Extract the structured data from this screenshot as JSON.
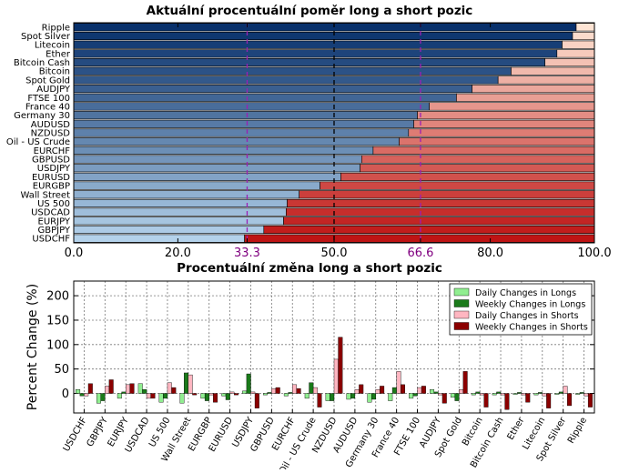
{
  "chart_data": [
    {
      "type": "bar",
      "orientation": "horizontal",
      "stacked": true,
      "title": "Aktuální procentuální poměr long a short pozic",
      "xlim": [
        0,
        100
      ],
      "xticks": [
        "0.0",
        "20.0",
        "33.3",
        "50.0",
        "66.6",
        "80.0",
        "100.0"
      ],
      "reference_lines": [
        {
          "value": 33.3,
          "style": "dashed",
          "color": "#9b1fb4"
        },
        {
          "value": 50.0,
          "style": "dashed",
          "color": "#000000"
        },
        {
          "value": 66.6,
          "style": "dashed",
          "color": "#9b1fb4"
        }
      ],
      "categories": [
        "Ripple",
        "Spot Silver",
        "Litecoin",
        "Ether",
        "Bitcoin Cash",
        "Bitcoin",
        "Spot Gold",
        "AUDJPY",
        "FTSE 100",
        "France 40",
        "Germany 30",
        "AUDUSD",
        "NZDUSD",
        "Oil - US Crude",
        "EURCHF",
        "GBPUSD",
        "USDJPY",
        "EURUSD",
        "EURGBP",
        "Wall Street",
        "US 500",
        "USDCAD",
        "EURJPY",
        "GBPJPY",
        "USDCHF"
      ],
      "long_percent": [
        96.5,
        95.8,
        93.8,
        92.8,
        90.5,
        84.0,
        81.5,
        76.5,
        73.5,
        68.3,
        66.0,
        65.3,
        64.3,
        62.5,
        57.5,
        55.3,
        55.0,
        51.3,
        47.3,
        43.3,
        41.0,
        40.8,
        40.3,
        36.5,
        32.8
      ],
      "short_percent": [
        3.5,
        4.2,
        6.2,
        7.2,
        9.5,
        16.0,
        18.5,
        23.5,
        26.5,
        31.7,
        34.0,
        34.7,
        35.7,
        37.5,
        42.5,
        44.7,
        45.0,
        48.7,
        52.7,
        56.7,
        59.0,
        59.2,
        59.7,
        63.5,
        67.2
      ],
      "grid": false
    },
    {
      "type": "bar",
      "title": "Procentuální změna long a short pozic",
      "ylabel": "Percent Change (%)",
      "ylim": [
        -40,
        230
      ],
      "yticks": [
        0,
        50,
        100,
        150,
        200
      ],
      "ytick_labels": [
        "0",
        "50",
        "100",
        "150",
        "200"
      ],
      "grid": true,
      "legend_placement": "top-right",
      "categories": [
        "USDCHF",
        "GBPJPY",
        "EURJPY",
        "USDCAD",
        "US 500",
        "Wall Street",
        "EURGBP",
        "EURUSD",
        "USDJPY",
        "GBPUSD",
        "EURCHF",
        "Oil - US Crude",
        "NZDUSD",
        "AUDUSD",
        "Germany 30",
        "France 40",
        "FTSE 100",
        "AUDJPY",
        "Spot Gold",
        "Bitcoin",
        "Bitcoin Cash",
        "Ether",
        "Litecoin",
        "Spot Silver",
        "Ripple"
      ],
      "series": [
        {
          "name": "Daily Changes in Longs",
          "color": "#90ee90",
          "values": [
            8,
            -20,
            -10,
            20,
            -18,
            -20,
            -10,
            -5,
            5,
            -3,
            -5,
            -10,
            -15,
            -12,
            -18,
            -15,
            -10,
            8,
            -8,
            -3,
            -3,
            -2,
            -3,
            -2,
            -2
          ]
        },
        {
          "name": "Weekly Changes in Longs",
          "color": "#1a7a1a",
          "values": [
            -5,
            -15,
            3,
            8,
            -10,
            42,
            -15,
            -13,
            40,
            2,
            2,
            22,
            -15,
            -10,
            -12,
            12,
            -5,
            3,
            -15,
            3,
            3,
            2,
            2,
            3,
            2
          ]
        },
        {
          "name": "Daily Changes in Shorts",
          "color": "#ffb6c1",
          "values": [
            -5,
            15,
            18,
            -10,
            22,
            38,
            -3,
            3,
            3,
            10,
            18,
            12,
            70,
            8,
            8,
            45,
            12,
            -3,
            8,
            -3,
            -3,
            -3,
            -5,
            15,
            -5
          ]
        },
        {
          "name": "Weekly Changes in Shorts",
          "color": "#8b0000",
          "values": [
            20,
            28,
            20,
            -10,
            12,
            -3,
            -18,
            -3,
            -30,
            12,
            10,
            -28,
            115,
            18,
            15,
            18,
            15,
            -20,
            45,
            -28,
            -33,
            -18,
            -30,
            -25,
            -28
          ]
        }
      ]
    }
  ]
}
